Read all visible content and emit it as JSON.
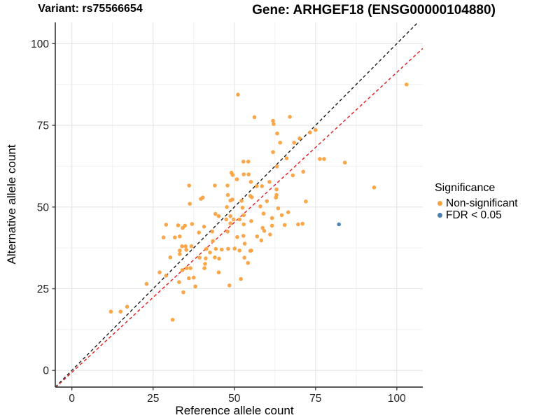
{
  "titles": {
    "left": "Variant: rs75566654",
    "right": "Gene: ARHGEF18 (ENSG00000104880)"
  },
  "axes": {
    "x_label": "Reference allele count",
    "y_label": "Alternative allele count"
  },
  "legend": {
    "title": "Significance",
    "items": [
      {
        "label": "Non-significant",
        "color": "#F9A240"
      },
      {
        "label": "FDR < 0.05",
        "color": "#4B7FB1"
      }
    ]
  },
  "chart_data": {
    "type": "scatter",
    "title": "Variant: rs75566654 — Gene: ARHGEF18 (ENSG00000104880)",
    "xlabel": "Reference allele count",
    "ylabel": "Alternative allele count",
    "xlim": [
      -5.1,
      108
    ],
    "ylim": [
      -5.1,
      106.5
    ],
    "xticks": [
      0,
      25,
      50,
      75,
      100
    ],
    "yticks": [
      0,
      25,
      50,
      75,
      100
    ],
    "minor_step": 12.5,
    "grid": true,
    "legend_position": "right",
    "reference_lines": [
      {
        "name": "identity y=x",
        "slope": 1,
        "intercept": 0,
        "color": "#1a1a1a",
        "dashed": true
      },
      {
        "name": "fitted proportion",
        "slope": 0.918,
        "intercept": -0.6,
        "color": "#E41A1C",
        "dashed": true
      }
    ],
    "series": [
      {
        "name": "Non-significant",
        "color": "#F9A240",
        "points": [
          [
            12,
            18
          ],
          [
            15,
            18
          ],
          [
            17,
            19.5
          ],
          [
            23,
            26.5
          ],
          [
            31,
            15.5
          ],
          [
            27,
            30
          ],
          [
            29,
            29
          ],
          [
            33,
            27
          ],
          [
            34.3,
            23.9
          ],
          [
            38,
            25.7
          ],
          [
            36,
            28.2
          ],
          [
            37.5,
            28.4
          ],
          [
            45.2,
            30
          ],
          [
            48.5,
            26
          ],
          [
            52,
            28
          ],
          [
            34,
            30.7
          ],
          [
            35.3,
            31.3
          ],
          [
            36.5,
            31.3
          ],
          [
            40.8,
            31.3
          ],
          [
            30.3,
            34.6
          ],
          [
            33.2,
            35.6
          ],
          [
            39.3,
            34.5
          ],
          [
            41.2,
            34.3
          ],
          [
            44,
            34.6
          ],
          [
            45.3,
            34.2
          ],
          [
            53.1,
            34.5
          ],
          [
            54.2,
            32.9
          ],
          [
            41,
            32.6
          ],
          [
            33.2,
            36.7
          ],
          [
            35,
            38
          ],
          [
            33.9,
            38
          ],
          [
            36.8,
            38
          ],
          [
            35.2,
            36.9
          ],
          [
            41.4,
            37.2
          ],
          [
            42.5,
            36.1
          ],
          [
            43.4,
            39.6
          ],
          [
            44.3,
            37.2
          ],
          [
            46.1,
            37
          ],
          [
            48.1,
            37.2
          ],
          [
            50.1,
            37.3
          ],
          [
            51.6,
            36.7
          ],
          [
            54.9,
            36.6
          ],
          [
            55.2,
            36.7
          ],
          [
            28.2,
            40.7
          ],
          [
            31.7,
            40.7
          ],
          [
            33.2,
            41
          ],
          [
            39.1,
            42.2
          ],
          [
            43.2,
            42.5
          ],
          [
            47.9,
            42.5
          ],
          [
            50.9,
            40.8
          ],
          [
            52.8,
            41.2
          ],
          [
            57,
            41
          ],
          [
            58.3,
            39.8
          ],
          [
            53.2,
            38.8
          ],
          [
            61,
            41.6
          ],
          [
            59.2,
            42.7
          ],
          [
            29,
            44.6
          ],
          [
            32.7,
            44.4
          ],
          [
            34.1,
            43.6
          ],
          [
            34.8,
            44.3
          ],
          [
            37,
            44.8
          ],
          [
            40.7,
            44
          ],
          [
            52.9,
            44.7
          ],
          [
            48.8,
            45
          ],
          [
            55.2,
            45.7
          ],
          [
            58.7,
            43.6
          ],
          [
            61.6,
            44.3
          ],
          [
            65.5,
            44.5
          ],
          [
            69.6,
            44.7
          ],
          [
            71,
            44.9
          ],
          [
            44.2,
            47.9
          ],
          [
            45.2,
            47.2
          ],
          [
            47.5,
            46.2
          ],
          [
            48.8,
            47.2
          ],
          [
            49.8,
            46.2
          ],
          [
            51.6,
            46.2
          ],
          [
            52.9,
            47.5
          ],
          [
            59,
            48
          ],
          [
            61.6,
            46.6
          ],
          [
            64.6,
            47.5
          ],
          [
            66.6,
            48.4
          ],
          [
            47.7,
            50
          ],
          [
            52.5,
            49.8
          ],
          [
            63.5,
            49.6
          ],
          [
            58,
            50.2
          ],
          [
            36.3,
            51
          ],
          [
            39.7,
            52.5
          ],
          [
            40.3,
            52.9
          ],
          [
            48,
            53.7
          ],
          [
            49.4,
            52.3
          ],
          [
            48.8,
            52
          ],
          [
            52.2,
            51.9
          ],
          [
            54.9,
            53.4
          ],
          [
            55.4,
            53
          ],
          [
            60,
            51.8
          ],
          [
            62.8,
            52.9
          ],
          [
            63,
            53.7
          ],
          [
            72,
            51.7
          ],
          [
            36.1,
            56.6
          ],
          [
            44,
            56.6
          ],
          [
            47.9,
            56.6
          ],
          [
            55.1,
            57.7
          ],
          [
            56.9,
            56.4
          ],
          [
            58.5,
            56.4
          ],
          [
            60.8,
            57.7
          ],
          [
            63,
            55.4
          ],
          [
            93,
            56
          ],
          [
            49.1,
            60.5
          ],
          [
            49.5,
            59.8
          ],
          [
            50.8,
            58.5
          ],
          [
            54.4,
            60
          ],
          [
            52.9,
            60
          ],
          [
            68,
            59.7
          ],
          [
            71.2,
            60.8
          ],
          [
            63.1,
            62.4
          ],
          [
            52.8,
            63.9
          ],
          [
            54.3,
            63.9
          ],
          [
            66.1,
            64.9
          ],
          [
            76.3,
            64.7
          ],
          [
            77.6,
            64.7
          ],
          [
            84,
            63.6
          ],
          [
            61.9,
            66.8
          ],
          [
            64.1,
            69.7
          ],
          [
            68.4,
            69.7
          ],
          [
            70.1,
            71
          ],
          [
            73.3,
            72.8
          ],
          [
            75,
            73.6
          ],
          [
            63.2,
            72.5
          ],
          [
            62.1,
            75.4
          ],
          [
            61.9,
            76.4
          ],
          [
            56.2,
            77.5
          ],
          [
            67.1,
            77.6
          ],
          [
            51.1,
            84.4
          ],
          [
            103,
            87.5
          ]
        ]
      },
      {
        "name": "FDR < 0.05",
        "color": "#4B7FB1",
        "points": [
          [
            82.2,
            44.7
          ]
        ]
      }
    ]
  }
}
